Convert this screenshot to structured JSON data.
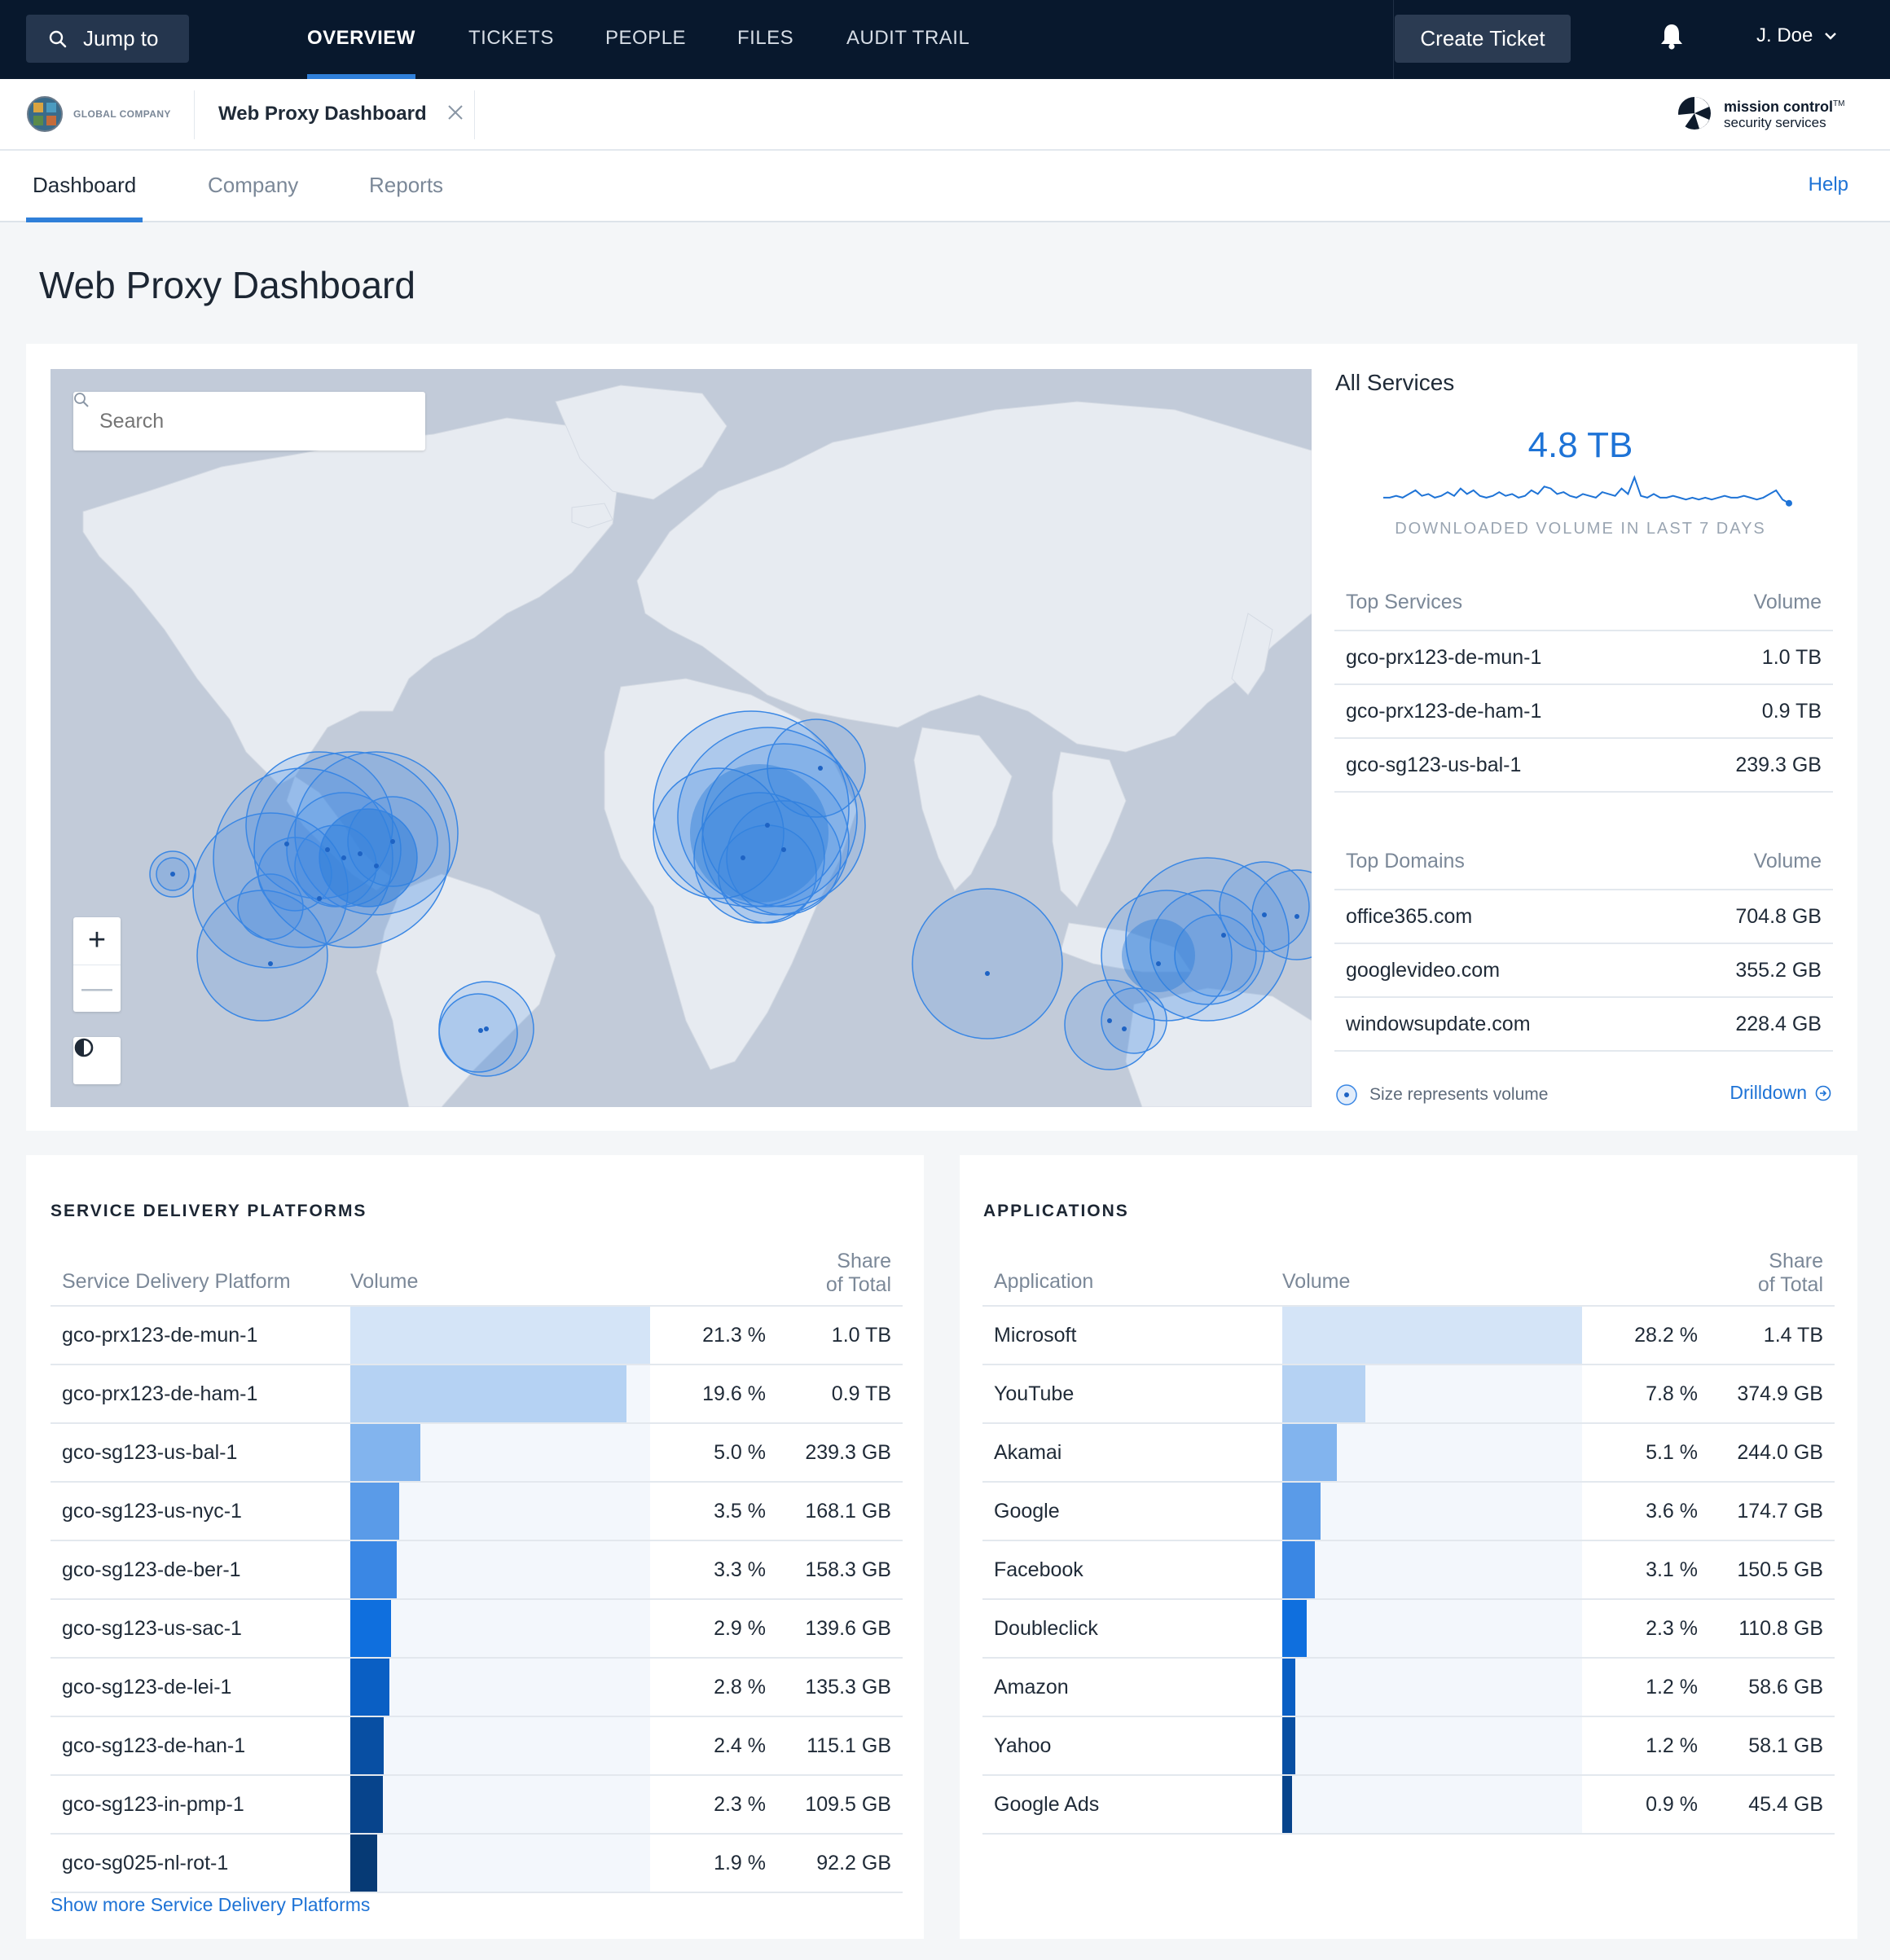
{
  "nav": {
    "jump_label": "Jump to",
    "tabs": [
      "OVERVIEW",
      "TICKETS",
      "PEOPLE",
      "FILES",
      "AUDIT TRAIL"
    ],
    "create_label": "Create Ticket",
    "user_label": "J. Doe"
  },
  "subheader": {
    "company_name": "GLOBAL COMPANY",
    "doc_tab": "Web Proxy Dashboard",
    "brand_line1": "mission control",
    "brand_tm": "TM",
    "brand_line2": "security services"
  },
  "page_tabs": [
    "Dashboard",
    "Company",
    "Reports"
  ],
  "help_label": "Help",
  "page_title": "Web Proxy Dashboard",
  "map": {
    "search_placeholder": "Search",
    "zoom_in": "+",
    "zoom_out": "—"
  },
  "all_services": {
    "title": "All Services",
    "total": "4.8 TB",
    "caption": "DOWNLOADED VOLUME IN LAST 7 DAYS",
    "spark_values": [
      4,
      4,
      5,
      4,
      6,
      8,
      5,
      6,
      4,
      5,
      7,
      5,
      9,
      6,
      8,
      5,
      4,
      5,
      7,
      5,
      6,
      4,
      5,
      8,
      6,
      10,
      9,
      6,
      7,
      5,
      4,
      6,
      5,
      4,
      7,
      6,
      5,
      9,
      6,
      15,
      5,
      4,
      6,
      4,
      4,
      5,
      4,
      3,
      4,
      3,
      4,
      3,
      4,
      5,
      4,
      4,
      5,
      4,
      3,
      4,
      6,
      8,
      3,
      1
    ]
  },
  "top_services": {
    "col_name": "Top Services",
    "col_volume": "Volume",
    "rows": [
      {
        "name": "gco-prx123-de-mun-1",
        "volume": "1.0 TB"
      },
      {
        "name": "gco-prx123-de-ham-1",
        "volume": "0.9 TB"
      },
      {
        "name": "gco-sg123-us-bal-1",
        "volume": "239.3 GB"
      }
    ]
  },
  "top_domains": {
    "col_name": "Top Domains",
    "col_volume": "Volume",
    "rows": [
      {
        "name": "office365.com",
        "volume": "704.8 GB"
      },
      {
        "name": "googlevideo.com",
        "volume": "355.2 GB"
      },
      {
        "name": "windowsupdate.com",
        "volume": "228.4 GB"
      }
    ]
  },
  "legend_label": "Size represents volume",
  "drilldown_label": "Drilldown",
  "sdp": {
    "title": "SERVICE DELIVERY PLATFORMS",
    "col_name": "Service Delivery Platform",
    "col_volume": "Volume",
    "col_share": "Share\nof Total",
    "rows": [
      {
        "name": "gco-prx123-de-mun-1",
        "share": "21.3 %",
        "volume": "1.0 TB",
        "share_value": 21.3
      },
      {
        "name": "gco-prx123-de-ham-1",
        "share": "19.6 %",
        "volume": "0.9 TB",
        "share_value": 19.6
      },
      {
        "name": "gco-sg123-us-bal-1",
        "share": "5.0 %",
        "volume": "239.3 GB",
        "share_value": 5.0
      },
      {
        "name": "gco-sg123-us-nyc-1",
        "share": "3.5 %",
        "volume": "168.1 GB",
        "share_value": 3.5
      },
      {
        "name": "gco-sg123-de-ber-1",
        "share": "3.3 %",
        "volume": "158.3 GB",
        "share_value": 3.3
      },
      {
        "name": "gco-sg123-us-sac-1",
        "share": "2.9 %",
        "volume": "139.6 GB",
        "share_value": 2.9
      },
      {
        "name": "gco-sg123-de-lei-1",
        "share": "2.8 %",
        "volume": "135.3 GB",
        "share_value": 2.8
      },
      {
        "name": "gco-sg123-de-han-1",
        "share": "2.4 %",
        "volume": "115.1 GB",
        "share_value": 2.4
      },
      {
        "name": "gco-sg123-in-pmp-1",
        "share": "2.3 %",
        "volume": "109.5 GB",
        "share_value": 2.3
      },
      {
        "name": "gco-sg025-nl-rot-1",
        "share": "1.9 %",
        "volume": "92.2 GB",
        "share_value": 1.9
      }
    ],
    "show_more": "Show more Service Delivery Platforms"
  },
  "apps": {
    "title": "APPLICATIONS",
    "col_name": "Application",
    "col_volume": "Volume",
    "col_share": "Share\nof Total",
    "rows": [
      {
        "name": "Microsoft",
        "share": "28.2 %",
        "volume": "1.4 TB",
        "share_value": 28.2
      },
      {
        "name": "YouTube",
        "share": "7.8 %",
        "volume": "374.9 GB",
        "share_value": 7.8
      },
      {
        "name": "Akamai",
        "share": "5.1 %",
        "volume": "244.0 GB",
        "share_value": 5.1
      },
      {
        "name": "Google",
        "share": "3.6 %",
        "volume": "174.7 GB",
        "share_value": 3.6
      },
      {
        "name": "Facebook",
        "share": "3.1 %",
        "volume": "150.5 GB",
        "share_value": 3.1
      },
      {
        "name": "Doubleclick",
        "share": "2.3 %",
        "volume": "110.8 GB",
        "share_value": 2.3
      },
      {
        "name": "Amazon",
        "share": "1.2 %",
        "volume": "58.6 GB",
        "share_value": 1.2
      },
      {
        "name": "Yahoo",
        "share": "1.2 %",
        "volume": "58.1 GB",
        "share_value": 1.2
      },
      {
        "name": "Google Ads",
        "share": "0.9 %",
        "volume": "45.4 GB",
        "share_value": 0.9
      }
    ]
  },
  "colors": {
    "accent": "#1e73d6",
    "nav_bg": "#08182d",
    "bar_ramp": [
      "#d4e4f7",
      "#b5d2f3",
      "#82b4ee",
      "#5a9be8",
      "#3a87e4",
      "#0f6fde",
      "#0a5fc4",
      "#084fa3",
      "#07448c",
      "#063a75"
    ]
  }
}
